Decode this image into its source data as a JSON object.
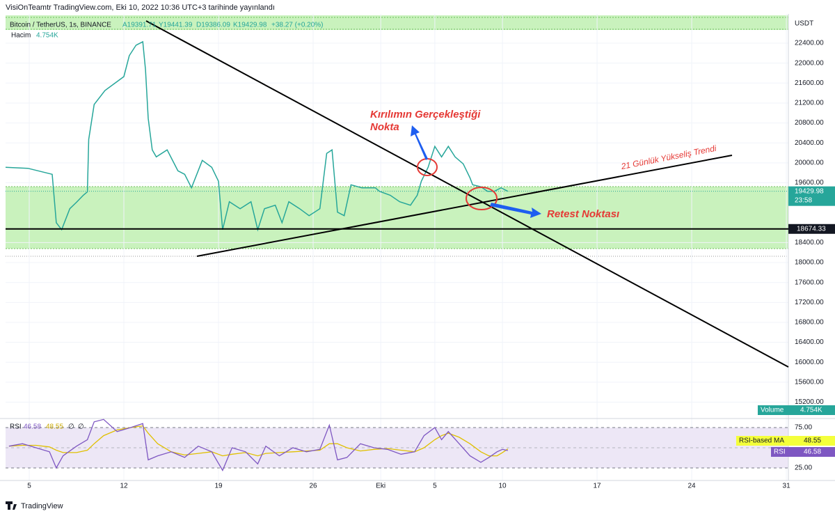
{
  "header": {
    "publisher": "VisiOnTeamtr TradingView.com, Eki 10, 2022 10:36 UTC+3 tarihinde yayınlandı"
  },
  "chart_data": [
    {
      "type": "line",
      "symbol": "Bitcoin / TetherUS, 1s, BINANCE",
      "ohlc": [
        "A19391.71",
        "Y19441.39",
        "D19386.09",
        "K19429.98",
        "+38.27 (+0.20%)"
      ],
      "volume_title": "Hacim",
      "volume_value": "4.754K",
      "volume_tag": "Volume",
      "currency": "USDT",
      "x": [
        -1.75,
        -0.1,
        1.7,
        2.0,
        2.4,
        3.0,
        3.5,
        4.0,
        4.3,
        4.4,
        4.8,
        5.6,
        6.3,
        7.0,
        7.4,
        7.9,
        8.4,
        8.6,
        8.8,
        9.1,
        9.4,
        10.2,
        11.0,
        11.5,
        12.0,
        12.8,
        13.5,
        14.0,
        14.3,
        14.8,
        15.6,
        16.4,
        16.9,
        17.4,
        18.2,
        18.7,
        19.2,
        20.0,
        20.7,
        21.5,
        22.0,
        22.4,
        22.8,
        23.3,
        23.8,
        24.6,
        25.6,
        25.9,
        26.7,
        27.4,
        28.2,
        28.7,
        29.0,
        29.5,
        30.0,
        30.5,
        31.0,
        31.5,
        32.1,
        32.6,
        32.8,
        33.4,
        33.9,
        34.4,
        34.9,
        35.4
      ],
      "values": [
        19910,
        19890,
        19770,
        18800,
        18660,
        19080,
        19210,
        19350,
        19420,
        20470,
        21170,
        21450,
        21590,
        21730,
        22150,
        22360,
        22430,
        21870,
        20890,
        20260,
        20120,
        20260,
        19840,
        19770,
        19500,
        20050,
        19910,
        19630,
        18660,
        19220,
        19080,
        19220,
        18660,
        19080,
        19150,
        18800,
        19220,
        19080,
        18940,
        19080,
        20190,
        20260,
        19010,
        18940,
        19560,
        19500,
        19500,
        19430,
        19350,
        19220,
        19150,
        19350,
        19630,
        19910,
        20330,
        20120,
        20330,
        20120,
        19980,
        19700,
        19560,
        19520,
        19430,
        19430,
        19500,
        19429.98
      ],
      "color": "#26a69a",
      "xlim": [
        -1.75,
        56.15
      ],
      "xticks": [
        {
          "value": 0,
          "label": "5"
        },
        {
          "value": 7,
          "label": "12"
        },
        {
          "value": 14,
          "label": "19"
        },
        {
          "value": 21,
          "label": "26"
        },
        {
          "value": 26,
          "label": "Eki"
        },
        {
          "value": 30,
          "label": "5"
        },
        {
          "value": 35,
          "label": "10"
        },
        {
          "value": 42,
          "label": "17"
        },
        {
          "value": 49,
          "label": "24"
        },
        {
          "value": 56,
          "label": "31"
        }
      ],
      "ylim": [
        14886,
        22987
      ],
      "yticks": [
        {
          "value": 22400,
          "label": "22400.00"
        },
        {
          "value": 22000,
          "label": "22000.00"
        },
        {
          "value": 21600,
          "label": "21600.00"
        },
        {
          "value": 21200,
          "label": "21200.00"
        },
        {
          "value": 20800,
          "label": "20800.00"
        },
        {
          "value": 20400,
          "label": "20400.00"
        },
        {
          "value": 20000,
          "label": "20000.00"
        },
        {
          "value": 19600,
          "label": "19600.00"
        },
        {
          "value": 18400,
          "label": "18400.00"
        },
        {
          "value": 18000,
          "label": "18000.00"
        },
        {
          "value": 17600,
          "label": "17600.00"
        },
        {
          "value": 17200,
          "label": "17200.00"
        },
        {
          "value": 16800,
          "label": "16800.00"
        },
        {
          "value": 16400,
          "label": "16400.00"
        },
        {
          "value": 16000,
          "label": "16000.00"
        },
        {
          "value": 15600,
          "label": "15600.00"
        },
        {
          "value": 15200,
          "label": "15200.00"
        }
      ],
      "grid": true,
      "last_price": 19429.98,
      "countdown": "23:58",
      "level": 18674.33,
      "annotations": [
        "Kırılımın Gerçekleştiği",
        "Nokta",
        "21 Günlük Yükseliş Trendi",
        "Retest Noktası"
      ]
    },
    {
      "type": "line",
      "title": "RSI",
      "x": [
        -1.5,
        -0.5,
        0.5,
        1.5,
        2.0,
        2.5,
        3.5,
        4.3,
        4.8,
        5.5,
        6.5,
        7.5,
        8.4,
        8.8,
        9.5,
        10.5,
        11.5,
        12.5,
        13.5,
        14.3,
        15.0,
        16.0,
        16.9,
        17.5,
        18.5,
        19.5,
        20.5,
        21.5,
        22.2,
        22.8,
        23.5,
        24.5,
        25.5,
        26.5,
        27.5,
        28.5,
        29.2,
        30.0,
        30.5,
        31.0,
        31.8,
        32.6,
        33.4,
        34.0,
        34.6,
        35.0,
        35.4
      ],
      "xlim": [
        -1.75,
        56.15
      ],
      "ylim": [
        9.5,
        85.3
      ],
      "yticks": [
        {
          "value": 75,
          "label": "75.00"
        },
        {
          "value": 25,
          "label": "25.00"
        }
      ],
      "series": [
        {
          "name": "RSI",
          "color": "#7e57c2",
          "values": [
            52,
            55,
            50,
            45,
            25,
            40,
            52,
            60,
            82,
            85,
            70,
            75,
            80,
            35,
            40,
            45,
            38,
            52,
            45,
            22,
            50,
            45,
            30,
            52,
            40,
            50,
            45,
            48,
            78,
            35,
            38,
            55,
            50,
            48,
            42,
            45,
            65,
            75,
            60,
            70,
            55,
            40,
            32,
            38,
            45,
            48,
            46.58
          ]
        },
        {
          "name": "RSI-based MA",
          "color": "#e0c000",
          "values": [
            52,
            53,
            53,
            51,
            47,
            44,
            44,
            47,
            55,
            65,
            72,
            75,
            77,
            68,
            55,
            45,
            41,
            43,
            45,
            40,
            42,
            44,
            40,
            43,
            44,
            45,
            46,
            47,
            55,
            55,
            50,
            46,
            48,
            49,
            47,
            45,
            50,
            60,
            65,
            68,
            63,
            55,
            45,
            40,
            40,
            44,
            48.55
          ]
        }
      ],
      "legend_extra": [
        "∅",
        "∅"
      ]
    }
  ],
  "footer": {
    "brand": "TradingView"
  }
}
